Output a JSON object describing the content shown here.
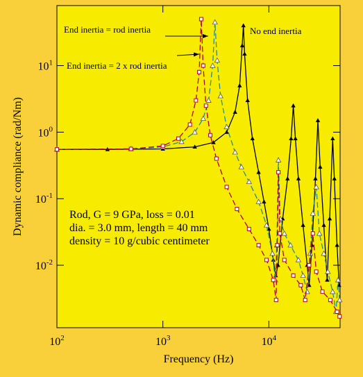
{
  "chart_data": {
    "type": "line",
    "xlabel": "Frequency (Hz)",
    "ylabel": "Dynamic compliance (rad/Nm)",
    "log_x": true,
    "log_y": true,
    "xlim": [
      100,
      47000
    ],
    "ylim": [
      0.00115,
      80
    ],
    "xticks": [
      {
        "value": 100,
        "label": "10^2"
      },
      {
        "value": 1000,
        "label": "10^3"
      },
      {
        "value": 10000,
        "label": "10^4"
      }
    ],
    "yticks": [
      {
        "value": 0.01,
        "label": "10^-2"
      },
      {
        "value": 0.1,
        "label": "10^-1"
      },
      {
        "value": 1,
        "label": "10^0"
      },
      {
        "value": 10,
        "label": "10^1"
      }
    ],
    "annotations": [
      "Rod, G = 9 GPa, loss = 0.01",
      "dia. = 3.0 mm, length = 40 mm",
      "density = 10 g/cubic centimeter"
    ],
    "series": [
      {
        "name": "No end inertia",
        "color": "#000000",
        "marker": "triangle-filled",
        "dash": "none",
        "x": [
          100,
          300,
          1000,
          2000,
          3000,
          4000,
          4800,
          5300,
          5600,
          5750,
          5900,
          6300,
          7000,
          8000,
          9000,
          10000,
          11000,
          11600,
          12200,
          13500,
          15000,
          16200,
          17000,
          17800,
          19000,
          21000,
          23000,
          24000,
          25500,
          27500,
          29000,
          30500,
          33000,
          35500,
          37500,
          40000,
          41500,
          44000,
          46000
        ],
        "values": [
          0.55,
          0.55,
          0.56,
          0.6,
          0.7,
          1.0,
          2.0,
          5,
          20,
          40,
          15,
          3,
          0.8,
          0.25,
          0.09,
          0.035,
          0.012,
          0.007,
          0.01,
          0.05,
          0.2,
          0.8,
          2.5,
          0.8,
          0.2,
          0.04,
          0.01,
          0.005,
          0.02,
          0.2,
          1.5,
          0.3,
          0.04,
          0.006,
          0.05,
          0.8,
          0.2,
          0.02,
          0.005
        ]
      },
      {
        "name": "End inertia = rod inertia",
        "color": "#2a8a8a",
        "marker": "triangle-open",
        "dash": "8,4",
        "x": [
          100,
          500,
          1000,
          1500,
          2000,
          2400,
          2700,
          2950,
          3100,
          3250,
          3500,
          4000,
          4800,
          5500,
          6500,
          8000,
          9500,
          10800,
          11500,
          11900,
          12300,
          12800,
          14000,
          16000,
          19000,
          21000,
          23000,
          24500,
          26000,
          28000,
          30000,
          33000,
          36000,
          40000,
          43000,
          45000,
          46500
        ],
        "values": [
          0.55,
          0.56,
          0.6,
          0.72,
          1.0,
          1.6,
          3,
          10,
          45,
          12,
          3.5,
          1.2,
          0.5,
          0.3,
          0.18,
          0.09,
          0.04,
          0.015,
          0.006,
          0.02,
          0.38,
          0.05,
          0.03,
          0.02,
          0.012,
          0.007,
          0.004,
          0.015,
          0.06,
          0.15,
          0.03,
          0.015,
          0.008,
          0.004,
          0.002,
          0.006,
          0.003
        ]
      },
      {
        "name": "End inertia = 2 x rod inertia",
        "color": "#b00020",
        "marker": "square-open",
        "dash": "8,4",
        "x": [
          100,
          500,
          1000,
          1400,
          1800,
          2050,
          2200,
          2300,
          2400,
          2550,
          2800,
          3200,
          4000,
          5000,
          6500,
          8000,
          9500,
          11000,
          11700,
          12000,
          12300,
          12700,
          14000,
          17000,
          20000,
          22000,
          24000,
          26000,
          28000,
          32000,
          38000,
          44000,
          46500
        ],
        "values": [
          0.55,
          0.56,
          0.62,
          0.8,
          1.3,
          3,
          8,
          50,
          10,
          2.5,
          0.9,
          0.4,
          0.15,
          0.07,
          0.035,
          0.02,
          0.012,
          0.006,
          0.003,
          0.02,
          0.25,
          0.03,
          0.012,
          0.007,
          0.005,
          0.003,
          0.01,
          0.03,
          0.008,
          0.004,
          0.003,
          0.002,
          0.0017
        ]
      }
    ]
  }
}
